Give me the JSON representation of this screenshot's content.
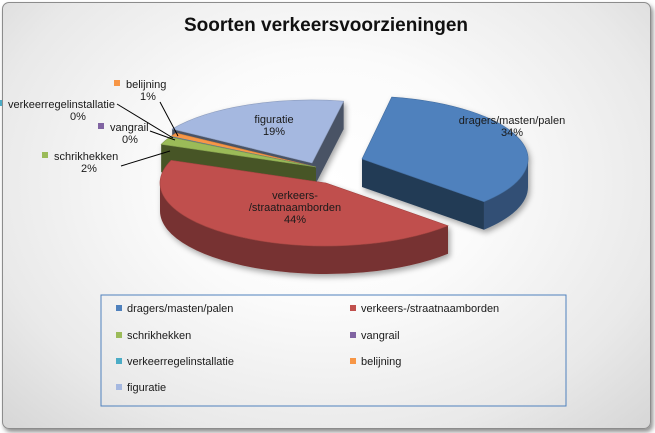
{
  "chart_data": {
    "type": "pie",
    "title": "Soorten verkeersvoorzieningen",
    "categories": [
      "dragers/masten/palen",
      "verkeers-/straatnaamborden",
      "schrikhekken",
      "vangrail",
      "verkeerregelinstallatie",
      "belijning",
      "figuratie"
    ],
    "values": [
      34,
      44,
      2,
      0,
      0,
      1,
      19
    ],
    "labels": [
      "34%",
      "44%",
      "2%",
      "0%",
      "0%",
      "1%",
      "19%"
    ],
    "colors": [
      "#4f81bd",
      "#c0504d",
      "#9bbb59",
      "#8064a2",
      "#4bacc6",
      "#f79646",
      "#a5b8e0"
    ],
    "legend_placement": "bottom",
    "style": "3d-exploded"
  }
}
